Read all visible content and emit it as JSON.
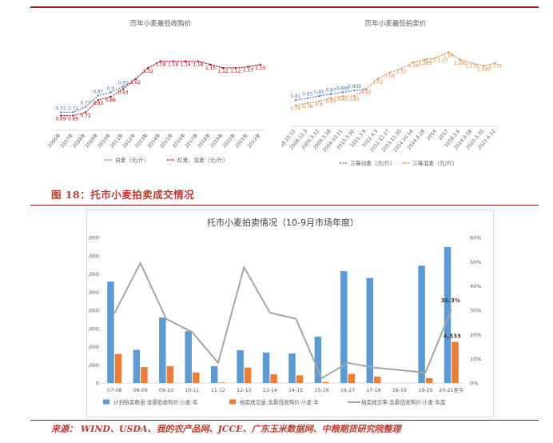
{
  "fig_title": "图 18：托市小麦拍卖成交情况",
  "source": "来源： WIND、USDA、我的农产品网、JCCE、广东玉米数据网、中粮期货研究院整理",
  "chart_data": [
    {
      "type": "line",
      "title": "历年小麦最低收购价",
      "categories": [
        "2006年",
        "2007年",
        "2008年",
        "2009年",
        "2010年",
        "2011年",
        "2012年",
        "2013年",
        "2014年",
        "2015年",
        "2016年",
        "2017年",
        "2018年",
        "2019年",
        "2020年",
        "2021年",
        "2022年"
      ],
      "series": [
        {
          "name": "白麦（元/斤）",
          "color": "#4472c4",
          "values": [
            0.72,
            0.72,
            0.77,
            0.87,
            0.9,
            0.95,
            1.02,
            1.12,
            1.18,
            1.18,
            1.18,
            1.18,
            1.15,
            1.12,
            1.12,
            1.13,
            1.15
          ],
          "labels": [
            "0.72",
            "0.72",
            "0.77",
            "0.87",
            "0.9",
            "0.95",
            "",
            "",
            "",
            "",
            "",
            "",
            "",
            "",
            "",
            "",
            ""
          ]
        },
        {
          "name": "红麦、混麦（元/斤）",
          "color": "#c00000",
          "values": [
            0.69,
            0.69,
            0.72,
            0.83,
            0.86,
            0.93,
            1.02,
            1.12,
            1.18,
            1.18,
            1.18,
            1.18,
            1.15,
            1.12,
            1.12,
            1.13,
            1.15
          ],
          "labels": [
            "0.69",
            "0.69",
            "0.72",
            "0.83",
            "0.86",
            "0.93",
            "1.02",
            "1.12",
            "1.18",
            "1.18",
            "1.18",
            "1.18",
            "1.15",
            "1.12",
            "1.12",
            "1.13",
            "1.15"
          ]
        }
      ],
      "ylim": [
        0.6,
        1.3
      ]
    },
    {
      "type": "line",
      "title": "历年小麦最低拍卖价",
      "categories": [
        "2008.10.15",
        "2008.12.3",
        "2009.3.12",
        "2009.3.18",
        "2009.10.21",
        "2010.3.30",
        "2011.3.9",
        "2012.4.1",
        "2012.12.27",
        "2013.11.30",
        "2014.10.14",
        "2014.4.28",
        "2016",
        "2017",
        "2018.3.6",
        "2019.4.18",
        "2020.3.30",
        "2021.4.12"
      ],
      "series": [
        {
          "name": "三等白麦（元/斤）",
          "color": "#4472c4",
          "values": [
            0.81,
            0.83,
            0.85,
            0.87,
            0.886,
            0.905,
            0.92,
            null,
            null,
            null,
            null,
            null,
            null,
            null,
            null,
            null,
            null,
            null
          ],
          "labels": [
            "0.81",
            "0.83",
            "0.85",
            "0.87",
            "0.886",
            "0.905",
            "",
            "",
            "",
            "",
            "",
            "",
            "",
            "",
            "",
            "",
            "",
            ""
          ]
        },
        {
          "name": "三等混麦（元/斤）",
          "color": "#ed7d31",
          "values": [
            0.76,
            0.78,
            0.8,
            0.83,
            0.85,
            0.85,
            0.92,
            1.02,
            1.08,
            1.12,
            1.18,
            1.205,
            1.23,
            1.28,
            1.205,
            1.175,
            1.145,
            1.175
          ],
          "labels": [
            "0.76",
            "0.78",
            "0.8",
            "0.83",
            "0.85",
            "0.85",
            "0.92",
            "1.02",
            "1.08",
            "1.12",
            "1.18",
            "1.205",
            "1.23·1.23",
            "1.28",
            "1.205",
            "1.175",
            "1.145",
            "1.175"
          ]
        }
      ],
      "ylim": [
        0.6,
        1.4
      ]
    },
    {
      "type": "bar",
      "title": "托市小麦拍卖情况（10-9月市场年度）",
      "categories": [
        "07-08",
        "08-09",
        "09-10",
        "10-11",
        "11-12",
        "12-13",
        "13-14",
        "14-15",
        "15-16",
        "16-17",
        "17-18",
        "18-19",
        "19-20",
        "20-21至今"
      ],
      "y_ticks": [
        "0",
        "2,000",
        "4,000",
        "6,000",
        "8,000",
        "10,000",
        "12,000",
        "14,000",
        "16,000"
      ],
      "y2_ticks": [
        "0%",
        "10%",
        "20%",
        "30%",
        "40%",
        "50%",
        "60%"
      ],
      "ylim": [
        0,
        16000
      ],
      "y2lim": [
        0,
        0.6
      ],
      "series": [
        {
          "name": "计划拍卖数量:含最低收购价:小麦:年",
          "color": "#5b9bd5",
          "values": [
            11150,
            3650,
            7200,
            5700,
            1850,
            3600,
            3350,
            3250,
            5100,
            12300,
            11550,
            null,
            12900,
            14950
          ]
        },
        {
          "name": "拍卖成交量:含最低收购价:小麦:年",
          "color": "#ed7d31",
          "values": [
            3200,
            1750,
            1850,
            1150,
            60,
            1700,
            950,
            850,
            100,
            1000,
            700,
            null,
            550,
            4533
          ]
        },
        {
          "name": "拍卖成交率:含最低收购价:小麦:年度",
          "color": "#a5a5a5",
          "axis": "y2",
          "values": [
            0.287,
            0.495,
            0.264,
            0.21,
            0.083,
            0.477,
            0.29,
            0.265,
            0.02,
            0.083,
            0.064,
            null,
            0.043,
            0.303
          ]
        }
      ],
      "annotations": [
        "30.3%",
        "4,533"
      ],
      "grid": false,
      "legend": "bottom"
    }
  ]
}
